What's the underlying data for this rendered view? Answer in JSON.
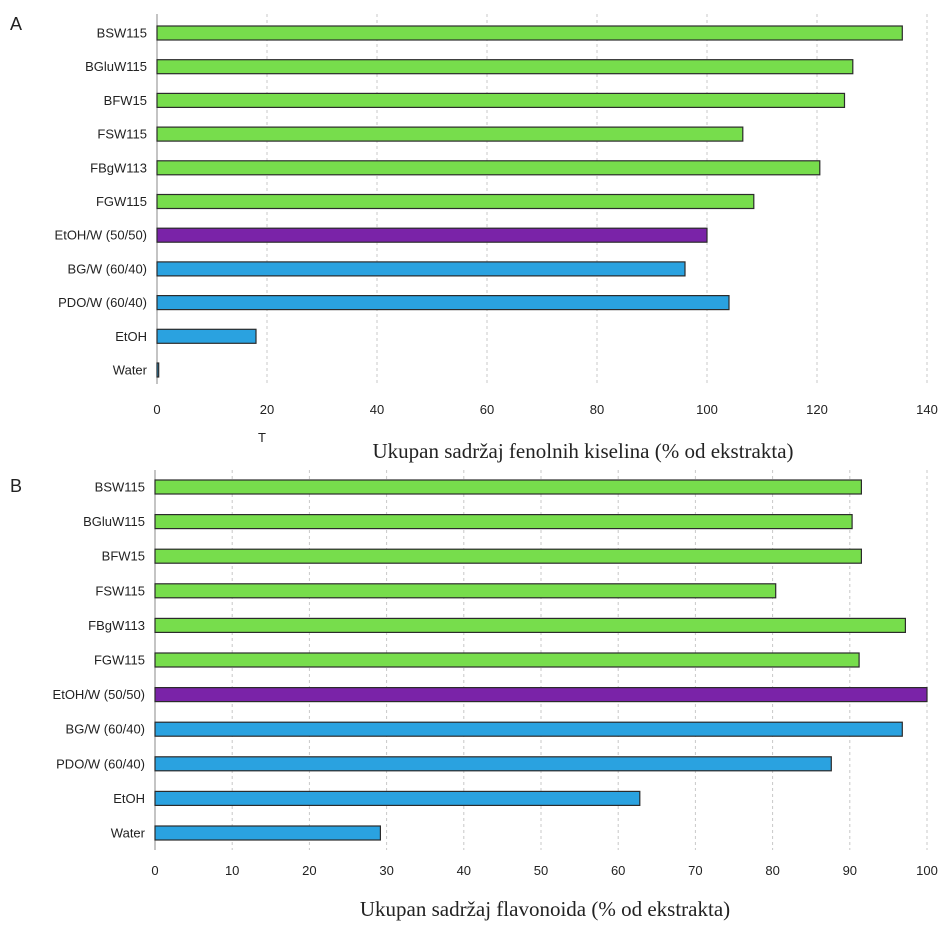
{
  "colors": {
    "green": "#77dd4c",
    "purple": "#7a23a8",
    "blue": "#2aa2e0"
  },
  "chart_data": [
    {
      "type": "bar",
      "orientation": "horizontal",
      "panel_label": "A",
      "categories": [
        "BSW115",
        "BGluW115",
        "BFW15",
        "FSW115",
        "FBgW113",
        "FGW115",
        "EtOH/W (50/50)",
        "BG/W (60/40)",
        "PDO/W (60/40)",
        "EtOH",
        "Water"
      ],
      "values": [
        135.5,
        126.5,
        125,
        106.5,
        120.5,
        108.5,
        100,
        96,
        104,
        18,
        0.3
      ],
      "bar_colors": [
        "green",
        "green",
        "green",
        "green",
        "green",
        "green",
        "purple",
        "blue",
        "blue",
        "blue",
        "blue"
      ],
      "xlim": [
        0,
        140
      ],
      "xticks": [
        0,
        20,
        40,
        60,
        80,
        100,
        120,
        140
      ],
      "xlabel": "Ukupan sadržaj fenolnih kiselina (% od ekstrakta)",
      "hidden_label_fragment": "T",
      "grid": true
    },
    {
      "type": "bar",
      "orientation": "horizontal",
      "panel_label": "B",
      "categories": [
        "BSW115",
        "BGluW115",
        "BFW15",
        "FSW115",
        "FBgW113",
        "FGW115",
        "EtOH/W (50/50)",
        "BG/W (60/40)",
        "PDO/W (60/40)",
        "EtOH",
        "Water"
      ],
      "values": [
        91.5,
        90.3,
        91.5,
        80.4,
        97.2,
        91.2,
        100,
        96.8,
        87.6,
        62.8,
        29.2
      ],
      "bar_colors": [
        "green",
        "green",
        "green",
        "green",
        "green",
        "green",
        "purple",
        "blue",
        "blue",
        "blue",
        "blue"
      ],
      "xlim": [
        0,
        100
      ],
      "xticks": [
        0,
        10,
        20,
        30,
        40,
        50,
        60,
        70,
        80,
        90,
        100
      ],
      "xlabel": "Ukupan sadržaj flavonoida (% od ekstrakta)",
      "grid": true
    }
  ]
}
